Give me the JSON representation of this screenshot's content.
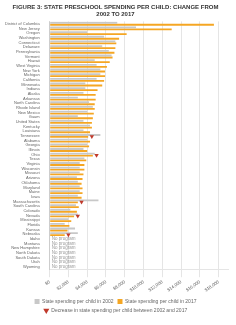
{
  "chart_data": {
    "type": "bar",
    "orientation": "horizontal",
    "title": "FIGURE 3: STATE PRESCHOOL SPENDING PER CHILD: CHANGE FROM 2002 TO 2017",
    "categories": [
      "District of Columbia",
      "New Jersey",
      "Oregon",
      "Washington",
      "Connecticut",
      "Delaware",
      "Pennsylvania",
      "Vermont",
      "Hawaii",
      "West Virginia",
      "New York",
      "Michigan",
      "California",
      "Minnesota",
      "Indiana",
      "Alaska",
      "Arkansas",
      "North Carolina",
      "Rhode Island",
      "New Mexico",
      "Guam",
      "United States",
      "Kentucky",
      "Louisiana",
      "Tennessee",
      "Alabama",
      "Georgia",
      "Illinois",
      "Ohio",
      "Texas",
      "Virginia",
      "Wisconsin",
      "Missouri",
      "Arizona",
      "Oklahoma",
      "Maryland",
      "Maine",
      "Iowa",
      "Massachusetts",
      "South Carolina",
      "Colorado",
      "Nevada",
      "Mississippi",
      "Florida",
      "Kansas",
      "Nebraska",
      "Idaho",
      "Montana",
      "New Hampshire",
      "North Dakota",
      "South Dakota",
      "Utah",
      "Wyoming"
    ],
    "series": [
      {
        "name": "State spending per child in 2002",
        "color": "#c8c8c8",
        "values": [
          7200,
          9200,
          4000,
          5800,
          7000,
          5600,
          6300,
          6600,
          4800,
          5000,
          5400,
          5400,
          5000,
          3800,
          3800,
          3600,
          3000,
          4200,
          4600,
          4000,
          3000,
          3600,
          4300,
          3600,
          5400,
          4000,
          4000,
          3600,
          4800,
          3700,
          3200,
          3200,
          3200,
          2900,
          3000,
          3200,
          3200,
          3000,
          5200,
          2800,
          2200,
          3000,
          2000,
          1600,
          2700,
          3000,
          0,
          0,
          0,
          0,
          0,
          0,
          0
        ]
      },
      {
        "name": "State spending per child in 2017",
        "color": "#f5a623",
        "values": [
          17500,
          13000,
          8200,
          7400,
          7100,
          7000,
          6900,
          6700,
          6400,
          6100,
          5900,
          5900,
          5800,
          5600,
          5100,
          4900,
          4900,
          4800,
          4800,
          4700,
          4600,
          4500,
          4500,
          4300,
          4100,
          4300,
          4200,
          4000,
          4600,
          3900,
          3700,
          3700,
          3600,
          3500,
          3400,
          3500,
          3500,
          3400,
          3000,
          3100,
          2900,
          2600,
          2300,
          2100,
          1900,
          1600,
          0,
          0,
          0,
          0,
          0,
          0,
          0
        ]
      },
      {
        "name": "Decrease in state spending per child between 2002 and 2017",
        "type": "scatter",
        "marker": "triangle_down",
        "color": "#c0392b",
        "values": [
          null,
          null,
          null,
          null,
          null,
          null,
          null,
          null,
          null,
          null,
          null,
          null,
          null,
          null,
          null,
          null,
          null,
          null,
          null,
          null,
          null,
          null,
          null,
          null,
          4100,
          null,
          null,
          null,
          4600,
          null,
          null,
          null,
          null,
          null,
          null,
          null,
          null,
          null,
          3000,
          null,
          null,
          2600,
          null,
          null,
          null,
          1600,
          null,
          null,
          null,
          null,
          null,
          null,
          null
        ]
      }
    ],
    "annotations": [
      {
        "text": "No program",
        "category": "Idaho"
      },
      {
        "text": "No program",
        "category": "Montana"
      },
      {
        "text": "No program",
        "category": "New Hampshire"
      },
      {
        "text": "No program",
        "category": "North Dakota"
      },
      {
        "text": "No program",
        "category": "South Dakota"
      },
      {
        "text": "No program",
        "category": "Utah"
      },
      {
        "text": "No program",
        "category": "Wyoming"
      }
    ],
    "xlim": [
      0,
      19000
    ],
    "xticks": [
      {
        "value": 0,
        "label": "$0"
      },
      {
        "value": 2000,
        "label": "$2,000"
      },
      {
        "value": 4000,
        "label": "$4,000"
      },
      {
        "value": 6000,
        "label": "$6,000"
      },
      {
        "value": 8000,
        "label": "$8,000"
      },
      {
        "value": 10000,
        "label": "$10,000"
      },
      {
        "value": 12000,
        "label": "$12,000"
      },
      {
        "value": 14000,
        "label": "$14,000"
      },
      {
        "value": 16000,
        "label": "$16,000"
      },
      {
        "value": 18000,
        "label": "$18,000"
      }
    ],
    "grid": true,
    "legend": "bottom"
  }
}
